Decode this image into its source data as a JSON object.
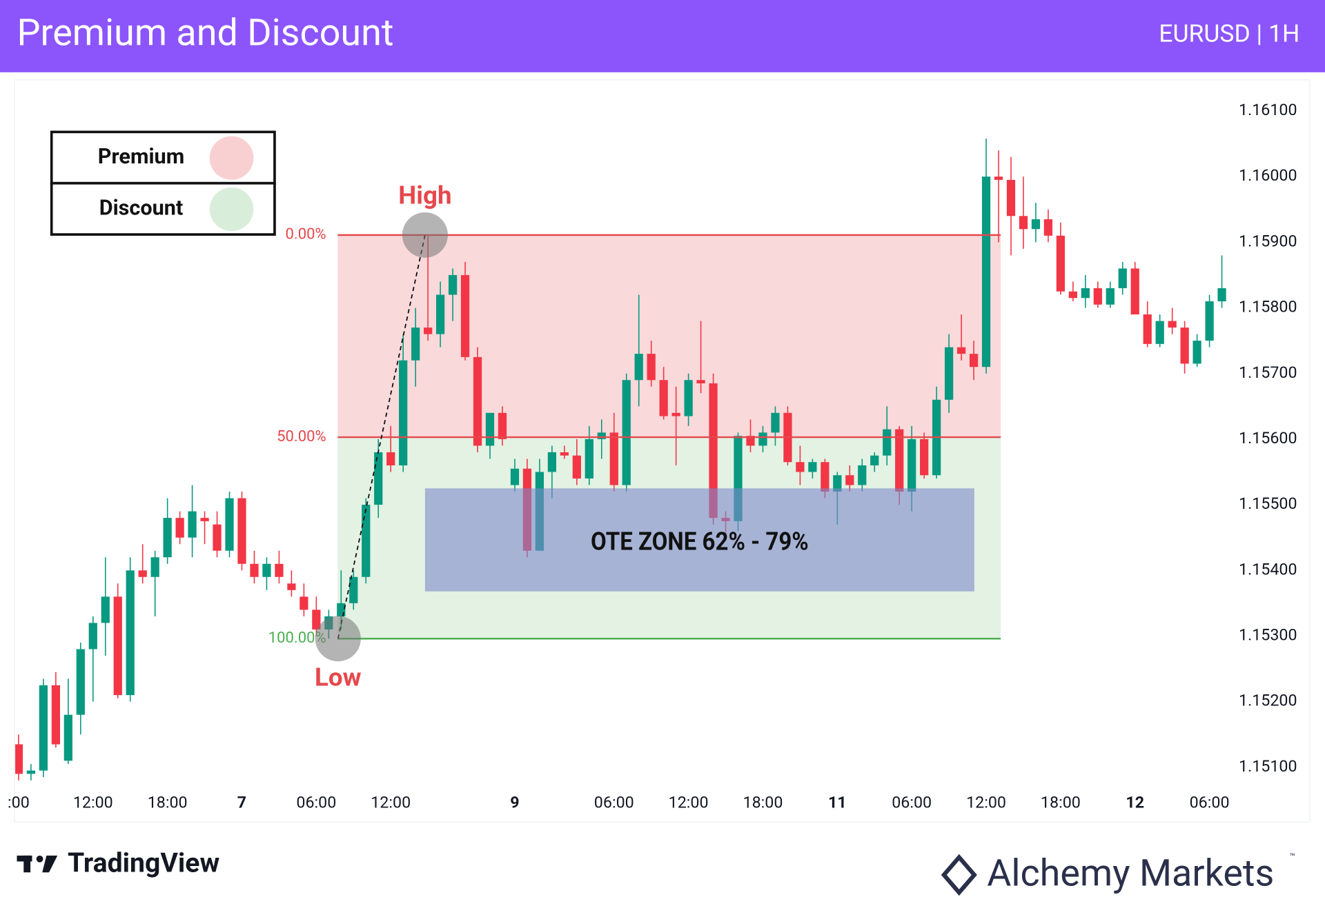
{
  "header": {
    "title": "Premium and Discount",
    "symbol": "EURUSD | 1H"
  },
  "legend": [
    {
      "label": "Premium",
      "color": "#f8d0d1"
    },
    {
      "label": "Discount",
      "color": "#d9eeda"
    }
  ],
  "footer": {
    "left": "TradingView",
    "right": "Alchemy Markets",
    "mark": "™"
  },
  "chart_data": {
    "type": "candlestick",
    "up_color": "#089981",
    "down_color": "#f23645",
    "ylim": [
      1.1505,
      1.1615
    ],
    "yticks": [
      {
        "value": 1.161,
        "label": "1.16100"
      },
      {
        "value": 1.16,
        "label": "1.16000"
      },
      {
        "value": 1.159,
        "label": "1.15900"
      },
      {
        "value": 1.158,
        "label": "1.15800"
      },
      {
        "value": 1.157,
        "label": "1.15700"
      },
      {
        "value": 1.156,
        "label": "1.15600"
      },
      {
        "value": 1.155,
        "label": "1.15500"
      },
      {
        "value": 1.154,
        "label": "1.15400"
      },
      {
        "value": 1.153,
        "label": "1.15300"
      },
      {
        "value": 1.152,
        "label": "1.15200"
      },
      {
        "value": 1.151,
        "label": "1.15100"
      }
    ],
    "categories": [
      ":00",
      null,
      null,
      null,
      null,
      null,
      "12:00",
      null,
      null,
      null,
      null,
      null,
      "18:00",
      null,
      null,
      null,
      null,
      null,
      "7",
      null,
      null,
      null,
      null,
      null,
      "06:00",
      null,
      null,
      null,
      null,
      null,
      "12:00",
      null,
      null,
      null,
      null,
      null,
      null,
      null,
      null,
      null,
      "9",
      null,
      null,
      null,
      null,
      null,
      null,
      null,
      "06:00",
      null,
      null,
      null,
      null,
      null,
      "12:00",
      null,
      null,
      null,
      null,
      null,
      "18:00",
      null,
      null,
      null,
      null,
      null,
      "11",
      null,
      null,
      null,
      null,
      null,
      "06:00",
      null,
      null,
      null,
      null,
      null,
      "12:00",
      null,
      null,
      null,
      null,
      null,
      "18:00",
      null,
      null,
      null,
      null,
      null,
      "12",
      null,
      null,
      null,
      null,
      null,
      "06:00",
      null
    ],
    "open": [
      1.15135,
      1.1509,
      1.15095,
      1.15225,
      1.1511,
      1.1518,
      1.1528,
      1.1532,
      1.1536,
      1.1521,
      1.154,
      1.1539,
      1.1542,
      1.1548,
      1.1545,
      1.1548,
      1.1547,
      1.1543,
      1.1551,
      1.1541,
      1.1539,
      1.1541,
      1.1538,
      1.1536,
      1.1534,
      1.1531,
      1.1533,
      1.1535,
      1.1539,
      1.155,
      1.1558,
      1.1556,
      1.1572,
      1.1577,
      1.1576,
      1.1582,
      1.1585,
      1.15725,
      1.1559,
      1.1564,
      1.1553,
      1.15555,
      1.1543,
      1.1555,
      1.1558,
      1.15575,
      1.1554,
      1.156,
      1.1561,
      1.1553,
      1.1569,
      1.1573,
      1.1569,
      1.1564,
      1.15635,
      1.1569,
      1.15685,
      1.1548,
      1.15475,
      1.15605,
      1.1559,
      1.1561,
      1.1564,
      1.15565,
      1.1555,
      1.15565,
      1.1552,
      1.15545,
      1.1553,
      1.1556,
      1.15575,
      1.15615,
      1.1552,
      1.156,
      1.15545,
      1.1566,
      1.1574,
      1.1573,
      1.1571,
      1.16,
      1.15995,
      1.1594,
      1.1592,
      1.15935,
      1.1591,
      1.15825,
      1.15815,
      1.1583,
      1.15805,
      1.1583,
      1.1586,
      1.1579,
      1.15745,
      1.1578,
      1.1577,
      1.15715,
      1.1575,
      1.1581
    ],
    "high": [
      1.1515,
      1.15105,
      1.15235,
      1.15245,
      1.15235,
      1.1529,
      1.1533,
      1.1542,
      1.1538,
      1.1542,
      1.1544,
      1.1543,
      1.1551,
      1.1549,
      1.1553,
      1.1549,
      1.1549,
      1.1552,
      1.1552,
      1.1543,
      1.1542,
      1.1543,
      1.154,
      1.1538,
      1.1536,
      1.1534,
      1.154,
      1.154,
      1.1551,
      1.156,
      1.1562,
      1.1576,
      1.158,
      1.15911,
      1.1584,
      1.1586,
      1.1587,
      1.1574,
      1.1564,
      1.1565,
      1.1557,
      1.1557,
      1.1557,
      1.1559,
      1.1559,
      1.156,
      1.1562,
      1.1563,
      1.1564,
      1.157,
      1.1582,
      1.1575,
      1.1571,
      1.1568,
      1.157,
      1.1578,
      1.157,
      1.1549,
      1.1561,
      1.1563,
      1.1562,
      1.1565,
      1.1565,
      1.1559,
      1.1557,
      1.1557,
      1.1555,
      1.1556,
      1.1557,
      1.1558,
      1.1565,
      1.1562,
      1.1562,
      1.1561,
      1.1568,
      1.1576,
      1.1579,
      1.1575,
      1.16058,
      1.1604,
      1.1603,
      1.16,
      1.1596,
      1.1595,
      1.1593,
      1.1584,
      1.1585,
      1.1584,
      1.1584,
      1.1587,
      1.1587,
      1.1581,
      1.1579,
      1.158,
      1.1578,
      1.1576,
      1.1582,
      1.1588
    ],
    "low": [
      1.1508,
      1.1508,
      1.15085,
      1.1513,
      1.15105,
      1.1515,
      1.152,
      1.1527,
      1.15205,
      1.152,
      1.1538,
      1.1533,
      1.1541,
      1.1544,
      1.1542,
      1.1544,
      1.1542,
      1.1542,
      1.154,
      1.1538,
      1.1537,
      1.1538,
      1.1536,
      1.1533,
      1.153,
      1.15296,
      1.1531,
      1.1534,
      1.1538,
      1.1548,
      1.1555,
      1.1555,
      1.1568,
      1.1575,
      1.1574,
      1.1578,
      1.1572,
      1.1558,
      1.1557,
      1.1559,
      1.1552,
      1.1542,
      1.1543,
      1.1551,
      1.1557,
      1.1553,
      1.1553,
      1.1557,
      1.1552,
      1.1552,
      1.1565,
      1.1568,
      1.1563,
      1.1556,
      1.1562,
      1.1567,
      1.1547,
      1.1545,
      1.1546,
      1.1558,
      1.1558,
      1.1559,
      1.1556,
      1.1553,
      1.1554,
      1.1551,
      1.1547,
      1.1552,
      1.1552,
      1.1555,
      1.1556,
      1.155,
      1.1549,
      1.1554,
      1.1554,
      1.1564,
      1.1572,
      1.1569,
      1.157,
      1.159,
      1.1588,
      1.1589,
      1.159,
      1.159,
      1.1582,
      1.1581,
      1.158,
      1.158,
      1.158,
      1.1582,
      1.1579,
      1.1574,
      1.1574,
      1.1576,
      1.157,
      1.1571,
      1.1574,
      1.158
    ],
    "close": [
      1.1509,
      1.15095,
      1.15225,
      1.15135,
      1.1518,
      1.1528,
      1.1532,
      1.1536,
      1.1521,
      1.154,
      1.1539,
      1.1542,
      1.1548,
      1.1545,
      1.1549,
      1.15475,
      1.1543,
      1.1551,
      1.1541,
      1.1539,
      1.1541,
      1.1539,
      1.1537,
      1.1534,
      1.1531,
      1.1533,
      1.1535,
      1.1539,
      1.155,
      1.1558,
      1.1556,
      1.1572,
      1.1577,
      1.1576,
      1.1582,
      1.1585,
      1.15725,
      1.1559,
      1.1564,
      1.156,
      1.15555,
      1.1543,
      1.1555,
      1.1558,
      1.15575,
      1.1554,
      1.156,
      1.1561,
      1.1553,
      1.1569,
      1.1573,
      1.1569,
      1.15635,
      1.15635,
      1.1569,
      1.15685,
      1.1548,
      1.15475,
      1.15605,
      1.1559,
      1.1561,
      1.1564,
      1.15565,
      1.1555,
      1.15565,
      1.1552,
      1.15545,
      1.1553,
      1.1556,
      1.15575,
      1.15615,
      1.1552,
      1.156,
      1.15545,
      1.1566,
      1.1574,
      1.1573,
      1.1571,
      1.16,
      1.15995,
      1.1594,
      1.1592,
      1.15935,
      1.1591,
      1.15825,
      1.15815,
      1.1583,
      1.15805,
      1.1583,
      1.1586,
      1.1579,
      1.15745,
      1.1578,
      1.1577,
      1.15715,
      1.1575,
      1.1581,
      1.1583
    ],
    "levels": [
      {
        "label": "0.00%",
        "price": 1.15911,
        "color": "#e5484d"
      },
      {
        "label": "50.00%",
        "price": 1.15603,
        "color": "#e5484d"
      },
      {
        "label": "100.00%",
        "price": 1.15296,
        "color": "#4caf50"
      }
    ],
    "ote": {
      "label": "OTE ZONE 62% - 79%",
      "top": 1.15525,
      "bottom": 1.15368,
      "color": "#7d88cc"
    },
    "high_label": "High",
    "low_label": "Low",
    "annotation_color": "#e5484d"
  }
}
